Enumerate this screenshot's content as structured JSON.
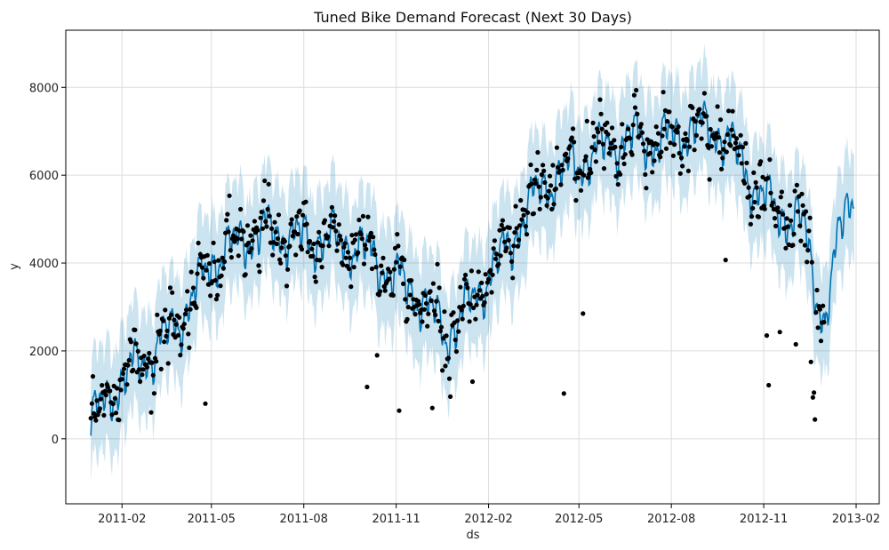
{
  "chart_data": {
    "type": "line",
    "title": "Tuned Bike Demand Forecast (Next 30 Days)",
    "xlabel": "ds",
    "ylabel": "y",
    "x_start": "2011-01-01",
    "x_end": "2013-01-30",
    "xlim": [
      "2010-12-07",
      "2013-02-24"
    ],
    "ylim": [
      -1480,
      9300
    ],
    "grid": true,
    "x_ticks": [
      "2011-02",
      "2011-05",
      "2011-08",
      "2011-11",
      "2012-02",
      "2012-05",
      "2012-08",
      "2012-11",
      "2013-02"
    ],
    "y_ticks": [
      0,
      2000,
      4000,
      6000,
      8000
    ],
    "history_days": 731,
    "forecast_days": 30,
    "trend_knots": [
      [
        0,
        350
      ],
      [
        30,
        1300
      ],
      [
        60,
        1900
      ],
      [
        90,
        2700
      ],
      [
        120,
        4000
      ],
      [
        150,
        4500
      ],
      [
        180,
        4700
      ],
      [
        210,
        4500
      ],
      [
        240,
        4500
      ],
      [
        270,
        4300
      ],
      [
        300,
        3700
      ],
      [
        330,
        3100
      ],
      [
        355,
        2300
      ],
      [
        385,
        3300
      ],
      [
        415,
        4300
      ],
      [
        445,
        5600
      ],
      [
        475,
        6100
      ],
      [
        505,
        6500
      ],
      [
        535,
        6800
      ],
      [
        565,
        6700
      ],
      [
        595,
        7000
      ],
      [
        625,
        7000
      ],
      [
        645,
        6400
      ],
      [
        660,
        5700
      ],
      [
        675,
        5300
      ],
      [
        695,
        5000
      ],
      [
        710,
        4800
      ],
      [
        720,
        3600
      ],
      [
        731,
        2500
      ],
      [
        744,
        4400
      ],
      [
        752,
        5500
      ],
      [
        760,
        5400
      ]
    ],
    "weekly_pattern": [
      -280,
      120,
      260,
      180,
      240,
      90,
      -310
    ],
    "interval_halfwidth": 950,
    "series": [
      {
        "name": "observed",
        "style": "points",
        "color": "#000000"
      },
      {
        "name": "yhat",
        "style": "line",
        "color": "#0072B2"
      },
      {
        "name": "yhat_interval",
        "style": "band",
        "color": "#0072B2",
        "opacity": 0.2
      }
    ],
    "outliers": [
      [
        23,
        1200
      ],
      [
        60,
        600
      ],
      [
        114,
        800
      ],
      [
        275,
        1180
      ],
      [
        285,
        1900
      ],
      [
        307,
        640
      ],
      [
        340,
        700
      ],
      [
        358,
        960
      ],
      [
        380,
        1300
      ],
      [
        471,
        1030
      ],
      [
        490,
        2850
      ],
      [
        632,
        4070
      ],
      [
        673,
        2350
      ],
      [
        675,
        1220
      ],
      [
        686,
        2430
      ],
      [
        717,
        1750
      ],
      [
        719,
        940
      ],
      [
        720,
        1050
      ],
      [
        721,
        440
      ],
      [
        702,
        2150
      ]
    ]
  }
}
